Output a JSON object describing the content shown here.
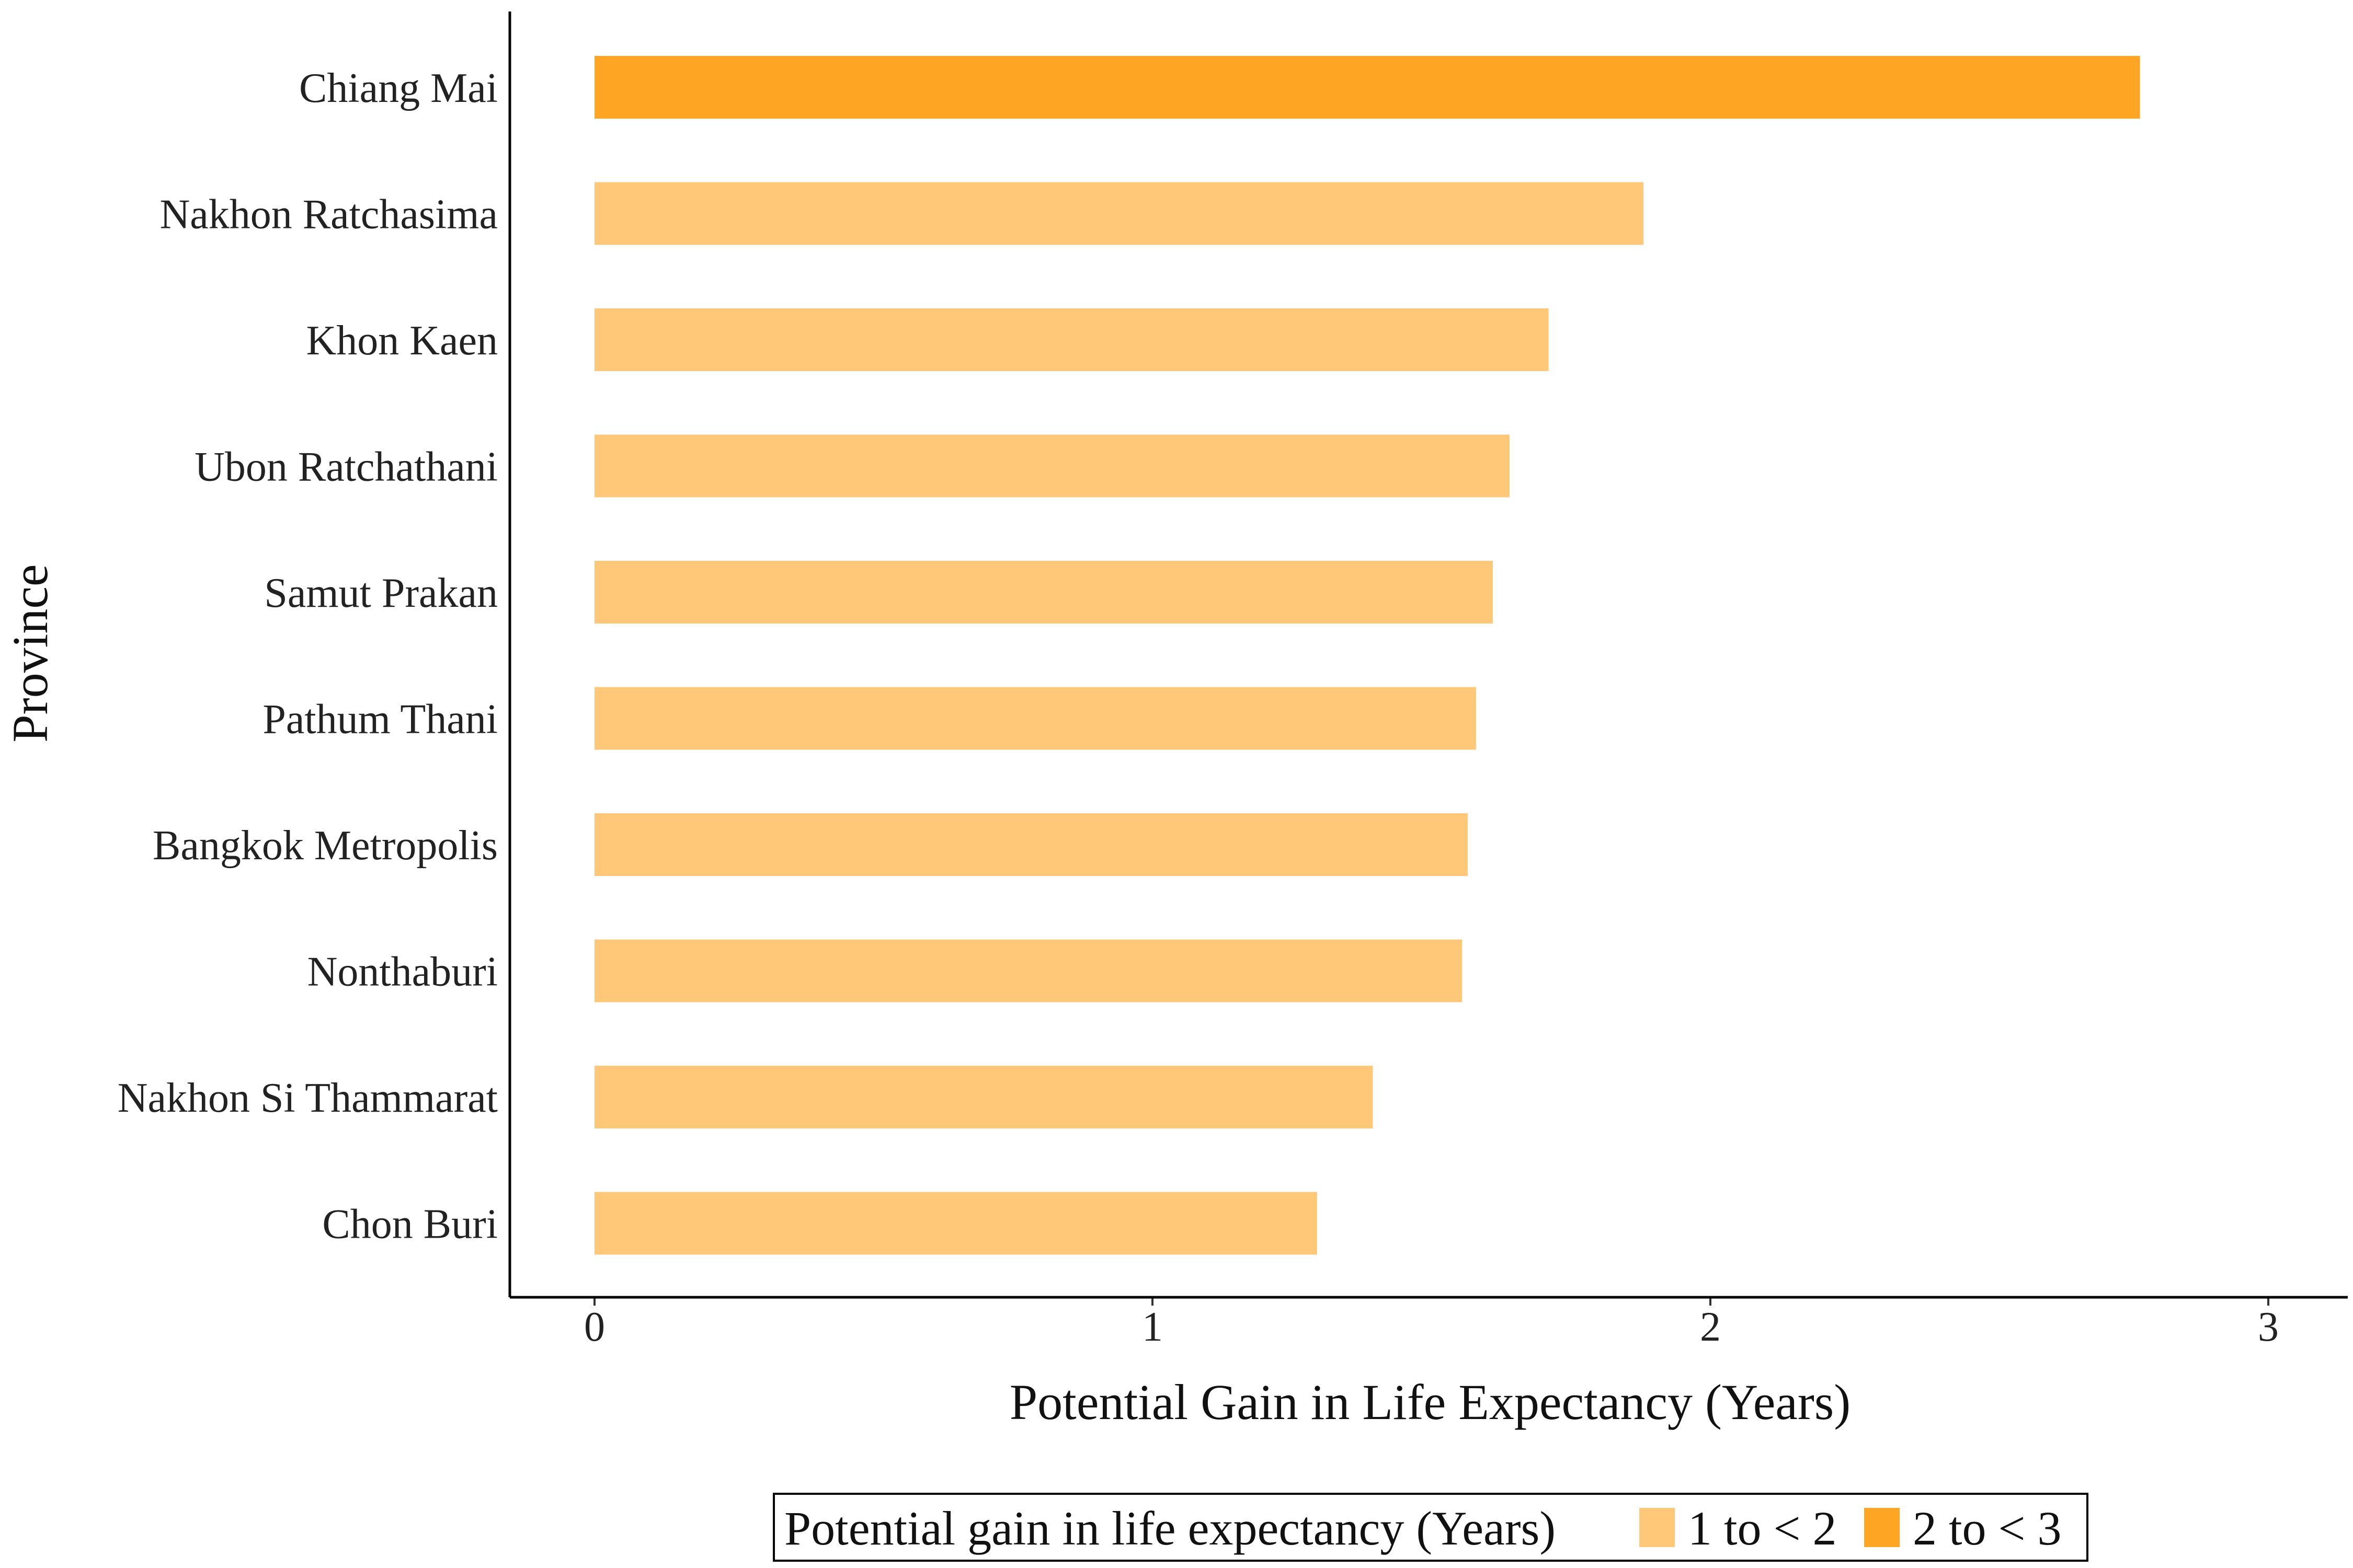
{
  "chart_data": {
    "type": "bar",
    "orientation": "horizontal",
    "title": "",
    "xlabel": "Potential Gain in Life Expectancy (Years)",
    "ylabel": "Province",
    "xlim": [
      0,
      3.05
    ],
    "xticks": [
      0,
      1,
      2,
      3
    ],
    "grid": false,
    "categories": [
      "Chiang Mai",
      "Nakhon Ratchasima",
      "Khon Kaen",
      "Ubon Ratchathani",
      "Samut Prakan",
      "Pathum Thani",
      "Bangkok Metropolis",
      "Nonthaburi",
      "Nakhon Si Thammarat",
      "Chon Buri"
    ],
    "values": [
      2.77,
      1.88,
      1.71,
      1.64,
      1.61,
      1.58,
      1.565,
      1.555,
      1.395,
      1.295
    ],
    "value_groups": [
      "2 to < 3",
      "1 to < 2",
      "1 to < 2",
      "1 to < 2",
      "1 to < 2",
      "1 to < 2",
      "1 to < 2",
      "1 to < 2",
      "1 to < 2",
      "1 to < 2"
    ],
    "legend": {
      "title": "Potential gain in life expectancy (Years)",
      "position": "bottom",
      "entries": [
        {
          "label": "1 to < 2",
          "color": "#FFC878"
        },
        {
          "label": "2 to < 3",
          "color": "#FFA524"
        }
      ]
    }
  }
}
